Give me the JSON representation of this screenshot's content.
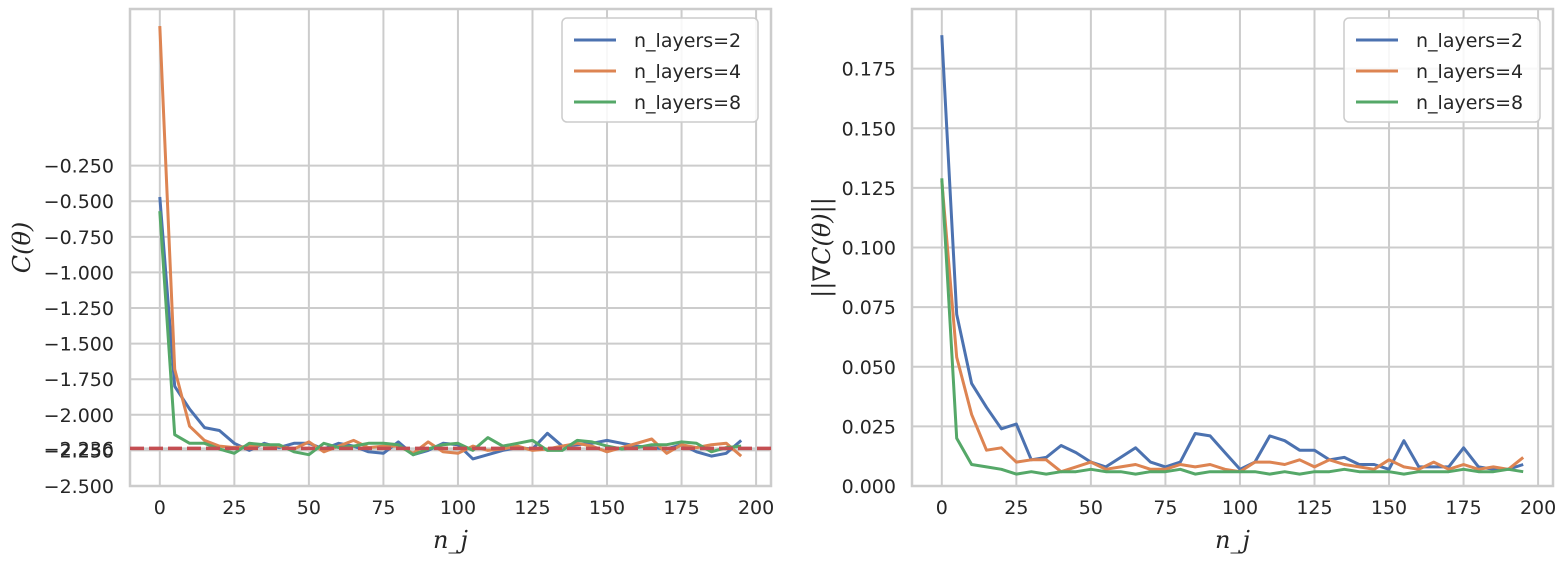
{
  "chart_data": [
    {
      "type": "line",
      "title": "",
      "xlabel": "n_j",
      "ylabel": "C(θ)",
      "xlim": [
        -10,
        205
      ],
      "ylim": [
        -2.5,
        0.85
      ],
      "xticks": [
        0,
        25,
        50,
        75,
        100,
        125,
        150,
        175,
        200
      ],
      "xtick_labels": [
        "0",
        "25",
        "50",
        "75",
        "100",
        "125",
        "150",
        "175",
        "200"
      ],
      "yticks": [
        -0.25,
        -0.5,
        -0.75,
        -1.0,
        -1.25,
        -1.5,
        -1.75,
        -2.0,
        -2.236,
        -2.25,
        -2.5
      ],
      "ytick_labels": [
        "−0.250",
        "−0.500",
        "−0.750",
        "−1.000",
        "−1.250",
        "−1.500",
        "−1.750",
        "−2.000",
        "−2.236",
        "−2.250",
        "−2.500"
      ],
      "grid": true,
      "legend": "top-right",
      "hline": {
        "y": -2.236,
        "color": "#c44e52",
        "style": "dashed"
      },
      "x": [
        0,
        5,
        10,
        15,
        20,
        25,
        30,
        35,
        40,
        45,
        50,
        55,
        60,
        65,
        70,
        75,
        80,
        85,
        90,
        95,
        100,
        105,
        110,
        115,
        120,
        125,
        130,
        135,
        140,
        145,
        150,
        155,
        160,
        165,
        170,
        175,
        180,
        185,
        190,
        195
      ],
      "series": [
        {
          "name": "n_layers=2",
          "color": "#4c72b0",
          "values": [
            -0.47,
            -1.8,
            -1.96,
            -2.09,
            -2.11,
            -2.2,
            -2.25,
            -2.2,
            -2.23,
            -2.2,
            -2.2,
            -2.24,
            -2.2,
            -2.22,
            -2.26,
            -2.27,
            -2.19,
            -2.28,
            -2.25,
            -2.2,
            -2.21,
            -2.31,
            -2.28,
            -2.25,
            -2.23,
            -2.24,
            -2.13,
            -2.22,
            -2.21,
            -2.2,
            -2.18,
            -2.2,
            -2.22,
            -2.23,
            -2.24,
            -2.21,
            -2.26,
            -2.29,
            -2.27,
            -2.18
          ]
        },
        {
          "name": "n_layers=4",
          "color": "#dd8452",
          "values": [
            0.73,
            -1.68,
            -2.08,
            -2.18,
            -2.22,
            -2.23,
            -2.22,
            -2.21,
            -2.22,
            -2.24,
            -2.19,
            -2.26,
            -2.22,
            -2.18,
            -2.23,
            -2.22,
            -2.22,
            -2.27,
            -2.19,
            -2.26,
            -2.27,
            -2.22,
            -2.25,
            -2.24,
            -2.22,
            -2.25,
            -2.24,
            -2.22,
            -2.2,
            -2.22,
            -2.26,
            -2.23,
            -2.2,
            -2.17,
            -2.27,
            -2.21,
            -2.23,
            -2.21,
            -2.2,
            -2.29
          ]
        },
        {
          "name": "n_layers=8",
          "color": "#55a868",
          "values": [
            -0.57,
            -2.14,
            -2.2,
            -2.2,
            -2.24,
            -2.27,
            -2.2,
            -2.21,
            -2.21,
            -2.26,
            -2.28,
            -2.2,
            -2.23,
            -2.22,
            -2.2,
            -2.2,
            -2.21,
            -2.28,
            -2.24,
            -2.21,
            -2.2,
            -2.25,
            -2.16,
            -2.22,
            -2.2,
            -2.18,
            -2.25,
            -2.25,
            -2.18,
            -2.19,
            -2.22,
            -2.24,
            -2.23,
            -2.21,
            -2.21,
            -2.19,
            -2.2,
            -2.26,
            -2.23,
            -2.22
          ]
        }
      ]
    },
    {
      "type": "line",
      "title": "",
      "xlabel": "n_j",
      "ylabel": "||∇C(θ)||",
      "xlim": [
        -10,
        205
      ],
      "ylim": [
        0,
        0.2
      ],
      "xticks": [
        0,
        25,
        50,
        75,
        100,
        125,
        150,
        175,
        200
      ],
      "xtick_labels": [
        "0",
        "25",
        "50",
        "75",
        "100",
        "125",
        "150",
        "175",
        "200"
      ],
      "yticks": [
        0,
        0.025,
        0.05,
        0.075,
        0.1,
        0.125,
        0.15,
        0.175
      ],
      "ytick_labels": [
        "0.000",
        "0.025",
        "0.050",
        "0.075",
        "0.100",
        "0.125",
        "0.150",
        "0.175"
      ],
      "grid": true,
      "legend": "top-right",
      "x": [
        0,
        5,
        10,
        15,
        20,
        25,
        30,
        35,
        40,
        45,
        50,
        55,
        60,
        65,
        70,
        75,
        80,
        85,
        90,
        95,
        100,
        105,
        110,
        115,
        120,
        125,
        130,
        135,
        140,
        145,
        150,
        155,
        160,
        165,
        170,
        175,
        180,
        185,
        190,
        195
      ],
      "series": [
        {
          "name": "n_layers=2",
          "color": "#4c72b0",
          "values": [
            0.189,
            0.072,
            0.043,
            0.033,
            0.024,
            0.026,
            0.011,
            0.012,
            0.017,
            0.014,
            0.01,
            0.008,
            0.012,
            0.016,
            0.01,
            0.008,
            0.01,
            0.022,
            0.021,
            0.014,
            0.007,
            0.01,
            0.021,
            0.019,
            0.015,
            0.015,
            0.011,
            0.012,
            0.009,
            0.009,
            0.007,
            0.019,
            0.008,
            0.008,
            0.008,
            0.016,
            0.008,
            0.007,
            0.007,
            0.009
          ]
        },
        {
          "name": "n_layers=4",
          "color": "#dd8452",
          "values": [
            0.128,
            0.054,
            0.03,
            0.015,
            0.016,
            0.01,
            0.011,
            0.011,
            0.006,
            0.008,
            0.01,
            0.007,
            0.008,
            0.009,
            0.007,
            0.007,
            0.009,
            0.008,
            0.009,
            0.007,
            0.006,
            0.01,
            0.01,
            0.009,
            0.011,
            0.008,
            0.011,
            0.009,
            0.008,
            0.007,
            0.011,
            0.008,
            0.007,
            0.01,
            0.007,
            0.009,
            0.007,
            0.008,
            0.007,
            0.012
          ]
        },
        {
          "name": "n_layers=8",
          "color": "#55a868",
          "values": [
            0.129,
            0.02,
            0.009,
            0.008,
            0.007,
            0.005,
            0.006,
            0.005,
            0.006,
            0.006,
            0.007,
            0.006,
            0.006,
            0.005,
            0.006,
            0.006,
            0.007,
            0.005,
            0.006,
            0.006,
            0.006,
            0.006,
            0.005,
            0.006,
            0.005,
            0.006,
            0.006,
            0.007,
            0.006,
            0.006,
            0.006,
            0.005,
            0.006,
            0.006,
            0.006,
            0.007,
            0.006,
            0.006,
            0.007,
            0.006
          ]
        }
      ]
    }
  ]
}
